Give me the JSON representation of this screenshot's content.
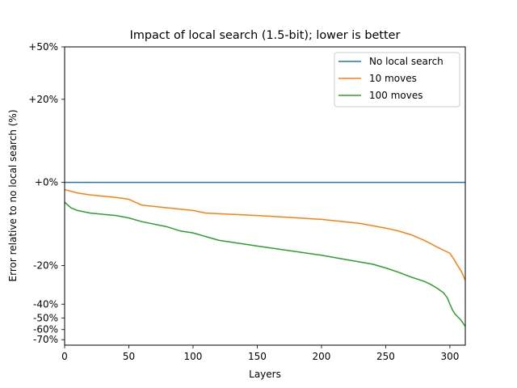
{
  "chart_data": {
    "type": "line",
    "title": "Impact of local search (1.5-bit); lower is better",
    "xlabel": "Layers",
    "ylabel": "Error relative to no local search (%)",
    "xlim": [
      0,
      312
    ],
    "ylim_transformed": [
      -0.76,
      0.5
    ],
    "y_axis_scale": "symmetric-log-like (labels shown as percent relative)",
    "x_ticks": [
      0,
      50,
      100,
      150,
      200,
      250,
      300
    ],
    "x_tick_labels": [
      "0",
      "50",
      "100",
      "150",
      "200",
      "250",
      "300"
    ],
    "y_ticks": [
      0.5,
      0.2,
      0.0,
      -0.2,
      -0.4,
      -0.5,
      -0.6,
      -0.7
    ],
    "y_tick_labels": [
      "+50%",
      "+20%",
      "+0%",
      "-20%",
      "-40%",
      "-50%",
      "-60%",
      "-70%"
    ],
    "legend_position": "top-right",
    "series": [
      {
        "name": "No local search",
        "color": "#1f77b4",
        "x": [
          0,
          312
        ],
        "y": [
          0.0,
          0.0
        ]
      },
      {
        "name": "10 moves",
        "color": "#ff7f0e",
        "x": [
          0,
          10,
          20,
          30,
          40,
          50,
          55,
          60,
          80,
          100,
          110,
          150,
          200,
          230,
          250,
          260,
          270,
          280,
          290,
          295,
          300,
          303,
          306,
          309,
          312
        ],
        "y": [
          -0.01,
          -0.015,
          -0.018,
          -0.02,
          -0.022,
          -0.025,
          -0.03,
          -0.035,
          -0.04,
          -0.045,
          -0.05,
          -0.055,
          -0.063,
          -0.072,
          -0.083,
          -0.09,
          -0.1,
          -0.115,
          -0.135,
          -0.145,
          -0.155,
          -0.175,
          -0.2,
          -0.225,
          -0.265
        ]
      },
      {
        "name": "100 moves",
        "color": "#2ca02c",
        "x": [
          0,
          5,
          10,
          20,
          40,
          50,
          60,
          80,
          90,
          100,
          120,
          150,
          200,
          220,
          240,
          250,
          260,
          270,
          280,
          285,
          290,
          295,
          298,
          300,
          302,
          304,
          306,
          308,
          310,
          312
        ],
        "y": [
          -0.03,
          -0.04,
          -0.045,
          -0.05,
          -0.055,
          -0.06,
          -0.068,
          -0.08,
          -0.09,
          -0.095,
          -0.115,
          -0.132,
          -0.162,
          -0.178,
          -0.195,
          -0.21,
          -0.228,
          -0.25,
          -0.27,
          -0.285,
          -0.305,
          -0.33,
          -0.36,
          -0.4,
          -0.44,
          -0.47,
          -0.49,
          -0.51,
          -0.54,
          -0.57
        ]
      }
    ]
  }
}
